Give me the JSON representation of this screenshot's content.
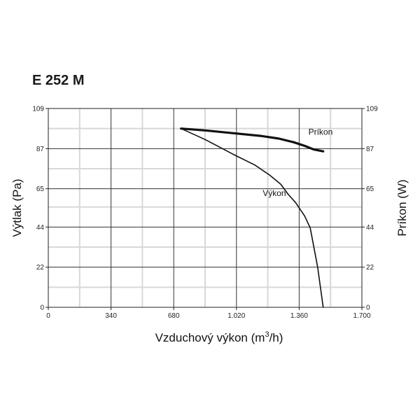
{
  "chart_data": {
    "type": "line",
    "title": "E 252 M",
    "xlabel_main": "Vzduchový výkon (m",
    "xlabel_sup": "3",
    "xlabel_tail": "/h)",
    "ylabel_left": "Výtlak (Pa)",
    "ylabel_right": "Príkon (W)",
    "xlim": [
      0,
      1700
    ],
    "ylim": [
      0,
      109
    ],
    "x_ticks": [
      {
        "value": 0,
        "label": "0"
      },
      {
        "value": 340,
        "label": "340"
      },
      {
        "value": 680,
        "label": "680"
      },
      {
        "value": 1020,
        "label": "1.020"
      },
      {
        "value": 1360,
        "label": "1.360"
      },
      {
        "value": 1700,
        "label": "1.700"
      }
    ],
    "y_ticks": [
      {
        "value": 0,
        "label": "0"
      },
      {
        "value": 22,
        "label": "22"
      },
      {
        "value": 44,
        "label": "44"
      },
      {
        "value": 65,
        "label": "65"
      },
      {
        "value": 87,
        "label": "87"
      },
      {
        "value": 109,
        "label": "109"
      }
    ],
    "x_minor_grid": [
      170,
      510,
      850,
      1190,
      1530
    ],
    "y_minor_grid": [
      11,
      33,
      55,
      76,
      98
    ],
    "grid": true,
    "series": [
      {
        "name": "Príkon",
        "axis": "right",
        "color": "#111111",
        "weight": "bold",
        "x": [
          720,
          850,
          1000,
          1150,
          1250,
          1330,
          1390,
          1440,
          1490
        ],
        "y": [
          98,
          97,
          95.5,
          94,
          92.5,
          90.5,
          88.5,
          86.5,
          85.5
        ]
      },
      {
        "name": "Výkon",
        "axis": "left",
        "color": "#111111",
        "weight": "normal",
        "x": [
          720,
          850,
          1000,
          1120,
          1200,
          1260,
          1300,
          1340,
          1390,
          1420,
          1460,
          1490
        ],
        "y": [
          98,
          92,
          84,
          78,
          72.5,
          67.5,
          62,
          57.5,
          50,
          43.5,
          22,
          0
        ]
      }
    ]
  }
}
